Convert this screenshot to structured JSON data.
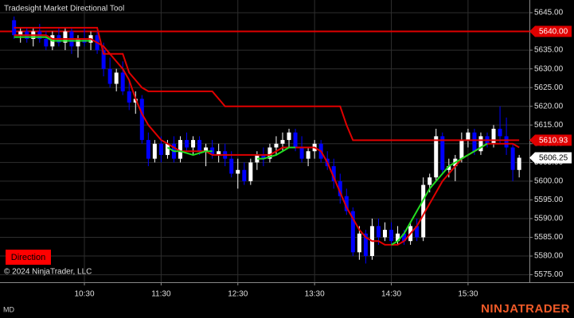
{
  "chart_data": {
    "type": "candlestick",
    "title": "Tradesight Market Directional Tool",
    "copyright": "© 2024 NinjaTrader, LLC",
    "button": "Direction",
    "account": "MD",
    "logo": "NINJATRADER",
    "up_color": "#ffffff",
    "down_color": "#0000ff",
    "grid": true,
    "xlim": [
      564,
      978
    ],
    "xticks": [
      {
        "value": 630,
        "label": "10:30"
      },
      {
        "value": 690,
        "label": "11:30"
      },
      {
        "value": 750,
        "label": "12:30"
      },
      {
        "value": 810,
        "label": "13:30"
      },
      {
        "value": 870,
        "label": "14:30"
      },
      {
        "value": 930,
        "label": "15:30"
      }
    ],
    "ylim": [
      5573,
      5648.4
    ],
    "yticks": [
      {
        "value": 5575,
        "label": "5575.00"
      },
      {
        "value": 5580,
        "label": "5580.00"
      },
      {
        "value": 5585,
        "label": "5585.00"
      },
      {
        "value": 5590,
        "label": "5590.00"
      },
      {
        "value": 5595,
        "label": "5595.00"
      },
      {
        "value": 5600,
        "label": "5600.00"
      },
      {
        "value": 5605,
        "label": "5605.00"
      },
      {
        "value": 5610,
        "label": "5610.00"
      },
      {
        "value": 5615,
        "label": "5615.00"
      },
      {
        "value": 5620,
        "label": "5620.00"
      },
      {
        "value": 5625,
        "label": "5625.00"
      },
      {
        "value": 5630,
        "label": "5630.00"
      },
      {
        "value": 5635,
        "label": "5635.00"
      },
      {
        "value": 5640,
        "label": "5640.00"
      },
      {
        "value": 5645,
        "label": "5645.00"
      }
    ],
    "x": [
      575,
      580,
      585,
      590,
      595,
      600,
      605,
      610,
      615,
      620,
      625,
      630,
      635,
      640,
      645,
      650,
      655,
      660,
      665,
      670,
      675,
      680,
      685,
      690,
      695,
      700,
      705,
      710,
      715,
      720,
      725,
      730,
      735,
      740,
      745,
      750,
      755,
      760,
      765,
      770,
      775,
      780,
      785,
      790,
      795,
      800,
      805,
      810,
      815,
      820,
      825,
      830,
      835,
      840,
      845,
      850,
      855,
      860,
      865,
      870,
      875,
      880,
      885,
      890,
      895,
      900,
      905,
      910,
      915,
      920,
      925,
      930,
      935,
      940,
      945,
      950,
      955,
      960,
      965,
      970
    ],
    "open": [
      5643,
      5639,
      5640,
      5638,
      5640,
      5638,
      5636,
      5639,
      5637,
      5640,
      5636,
      5638,
      5637,
      5639,
      5635,
      5630,
      5626,
      5629,
      5624,
      5621,
      5622,
      5611,
      5606,
      5610,
      5607,
      5610,
      5606,
      5611,
      5609,
      5611,
      5608,
      5609,
      5607,
      5608,
      5606,
      5602,
      5603,
      5600,
      5605,
      5607,
      5606,
      5609,
      5610,
      5611,
      5613,
      5609,
      5606,
      5608,
      5610,
      5606,
      5604,
      5600,
      5596,
      5592,
      5581,
      5586,
      5580,
      5588,
      5585,
      5587,
      5584,
      5586,
      5584,
      5588,
      5585,
      5599,
      5601,
      5612,
      5603,
      5604,
      5606,
      5611,
      5613,
      5608,
      5612,
      5610,
      5614,
      5612,
      5609,
      5603
    ],
    "high": [
      5644,
      5641,
      5641,
      5641,
      5642,
      5640,
      5640,
      5641,
      5641,
      5641,
      5639,
      5641,
      5640,
      5640,
      5637,
      5633,
      5630,
      5632,
      5627,
      5624,
      5623,
      5613,
      5611,
      5612,
      5611,
      5612,
      5612,
      5613,
      5612,
      5612,
      5610,
      5611,
      5610,
      5610,
      5608,
      5606,
      5605,
      5606,
      5608,
      5609,
      5610,
      5612,
      5613,
      5614,
      5614,
      5612,
      5609,
      5611,
      5611,
      5608,
      5606,
      5602,
      5598,
      5593,
      5588,
      5587,
      5590,
      5590,
      5589,
      5589,
      5588,
      5587,
      5589,
      5590,
      5601,
      5602,
      5614,
      5613,
      5606,
      5607,
      5613,
      5614,
      5614,
      5613,
      5613,
      5615,
      5620,
      5617,
      5610,
      5607
    ],
    "low": [
      5638,
      5637,
      5637,
      5636,
      5637,
      5635,
      5635,
      5636,
      5635,
      5634,
      5633,
      5636,
      5635,
      5634,
      5628,
      5625,
      5624,
      5623,
      5619,
      5618,
      5610,
      5604,
      5605,
      5605,
      5606,
      5605,
      5605,
      5608,
      5607,
      5607,
      5604,
      5606,
      5605,
      5604,
      5601,
      5598,
      5599,
      5599,
      5603,
      5604,
      5605,
      5607,
      5608,
      5609,
      5608,
      5605,
      5604,
      5606,
      5605,
      5603,
      5598,
      5594,
      5591,
      5580,
      5579,
      5578,
      5579,
      5583,
      5584,
      5583,
      5583,
      5583,
      5583,
      5584,
      5584,
      5597,
      5600,
      5602,
      5601,
      5600,
      5605,
      5609,
      5607,
      5607,
      5609,
      5609,
      5610,
      5607,
      5600,
      5601
    ],
    "close": [
      5639,
      5640,
      5638,
      5640,
      5638,
      5636,
      5639,
      5637,
      5640,
      5636,
      5638,
      5637,
      5639,
      5635,
      5630,
      5626,
      5629,
      5624,
      5621,
      5622,
      5611,
      5606,
      5610,
      5607,
      5610,
      5606,
      5611,
      5609,
      5611,
      5608,
      5609,
      5607,
      5608,
      5606,
      5602,
      5603,
      5600,
      5605,
      5607,
      5606,
      5609,
      5610,
      5611,
      5613,
      5609,
      5606,
      5608,
      5610,
      5606,
      5604,
      5600,
      5596,
      5592,
      5581,
      5586,
      5580,
      5588,
      5585,
      5587,
      5584,
      5586,
      5584,
      5588,
      5585,
      5599,
      5601,
      5612,
      5603,
      5604,
      5606,
      5611,
      5613,
      5608,
      5612,
      5610,
      5614,
      5612,
      5609,
      5603,
      5606.25
    ],
    "series": [
      {
        "color": "#e00000",
        "values": [
          5641,
          5641,
          5641,
          5641,
          5641,
          5641,
          5641,
          5641,
          5641,
          5641,
          5641,
          5641,
          5641,
          5641,
          5634,
          5634,
          5634,
          5634,
          5629,
          5627,
          5625,
          5624,
          5624,
          5624,
          5624,
          5624,
          5624,
          5624,
          5624,
          5624,
          5624,
          5624,
          5622,
          5620,
          5620,
          5620,
          5620,
          5620,
          5620,
          5620,
          5620,
          5620,
          5620,
          5620,
          5620,
          5620,
          5620,
          5620,
          5620,
          5620,
          5620,
          5620,
          5615,
          5610.93,
          5610.93,
          5610.93,
          5610.93,
          5610.93,
          5610.93,
          5610.93,
          5610.93,
          5610.93,
          5610.93,
          5610.93,
          5610.93,
          5610.93,
          5610.93,
          5610.93,
          5610.93,
          5610.93,
          5610.93,
          5610.93,
          5610.93,
          5610.93,
          5610.93,
          5610.93,
          5610.93,
          5610.93,
          5610.93,
          5610.93
        ]
      },
      {
        "color": "#e00000",
        "values": [
          5639,
          5639,
          5639,
          5639,
          5639,
          5639,
          5638,
          5638,
          5638,
          5638,
          5638,
          5638,
          5638,
          5637,
          5636,
          5634,
          5632,
          5630,
          5627,
          5622,
          5618,
          5615,
          5613,
          5611,
          5610,
          5609,
          5608,
          5608,
          5608,
          5608,
          5608,
          5607,
          5607,
          5607,
          5607,
          5607,
          5607,
          5607,
          5607,
          5607,
          5607,
          5608,
          5609,
          5609,
          5609,
          5609,
          5609,
          5609,
          5608,
          5605,
          5601,
          5597,
          5593,
          5590,
          5587,
          5585,
          5584,
          5584,
          5583,
          5583,
          5583,
          5584,
          5586,
          5588,
          5591,
          5594,
          5597,
          5600,
          5602,
          5604,
          5606,
          5607,
          5608,
          5609,
          5610,
          5610,
          5610,
          5610,
          5610,
          5609
        ]
      },
      {
        "color": "#22dd22",
        "values": [
          5638.5,
          5638.5,
          5638.5,
          5638.5,
          5638.5,
          5638.5,
          5637.5,
          5637.5,
          5637.5,
          5637.5,
          5637.5,
          5637.5,
          5637.5,
          null,
          null,
          null,
          null,
          null,
          null,
          null,
          null,
          null,
          null,
          null,
          5609,
          5608,
          5608,
          5607.5,
          5607,
          5607.5,
          5608,
          5608,
          null,
          null,
          null,
          null,
          null,
          null,
          5606,
          5606,
          5606.5,
          5607,
          5608,
          5609,
          5609,
          null,
          null,
          null,
          null,
          null,
          null,
          null,
          null,
          null,
          null,
          null,
          null,
          null,
          null,
          5583,
          5584,
          5586,
          5589,
          5592,
          5595,
          5598,
          5600,
          5602,
          5604,
          5605,
          5606,
          5607,
          5608,
          5609,
          5610,
          null,
          null,
          null,
          null,
          null
        ]
      }
    ],
    "reference_line": {
      "value": 5640,
      "color": "#e00000"
    },
    "price_labels": [
      {
        "value": 5640,
        "label": "5640.00",
        "color": "#e00000"
      },
      {
        "value": 5610.93,
        "label": "5610.93",
        "color": "#e00000"
      },
      {
        "value": 5606.25,
        "label": "5606.25",
        "color": "#ffffff"
      }
    ]
  }
}
